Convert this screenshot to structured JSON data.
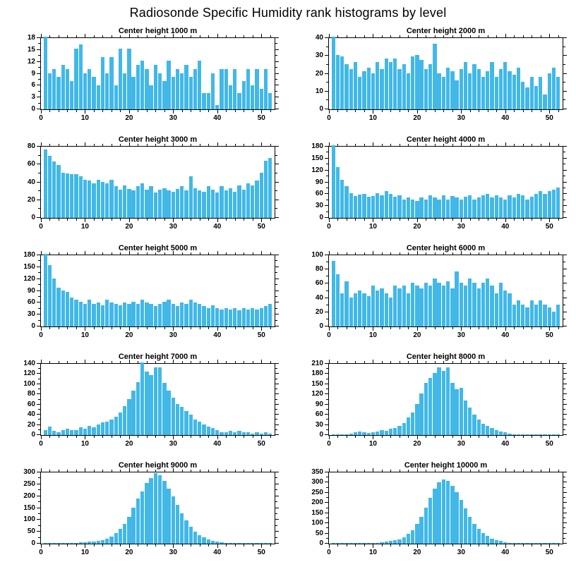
{
  "page_title": "Radiosonde Specific Humidity rank histograms by level",
  "bar_color": "#41b8e8",
  "chart_data": {
    "note": "see charts[] — ten rank histograms, shared x axis 0-50 with 52 bins"
  },
  "charts": [
    {
      "type": "bar",
      "title": "Center height 1000 m",
      "xlabel": "",
      "ylabel": "",
      "xlim": [
        0,
        53
      ],
      "ylim": [
        0,
        18
      ],
      "xticks": [
        0,
        10,
        20,
        30,
        40,
        50
      ],
      "yticks": [
        0,
        3,
        6,
        9,
        12,
        15,
        18
      ],
      "values": [
        18,
        9,
        10,
        8,
        11,
        10,
        7,
        15,
        16,
        9,
        10,
        8,
        6,
        13,
        9,
        13,
        6,
        15,
        9,
        15,
        8,
        11,
        12,
        10,
        6,
        11,
        9,
        7,
        12,
        8,
        10,
        9,
        11,
        8,
        10,
        12,
        4,
        4,
        9,
        1,
        10,
        10,
        6,
        10,
        4,
        7,
        10,
        6,
        10,
        5,
        10,
        4
      ]
    },
    {
      "type": "bar",
      "title": "Center height 2000 m",
      "xlabel": "",
      "ylabel": "",
      "xlim": [
        0,
        53
      ],
      "ylim": [
        0,
        40
      ],
      "xticks": [
        0,
        10,
        20,
        30,
        40,
        50
      ],
      "yticks": [
        0,
        10,
        20,
        30,
        40
      ],
      "values": [
        40,
        30,
        29,
        25,
        22,
        26,
        18,
        21,
        23,
        20,
        26,
        22,
        28,
        26,
        28,
        22,
        25,
        20,
        29,
        30,
        27,
        22,
        25,
        36,
        20,
        18,
        23,
        21,
        16,
        22,
        26,
        20,
        25,
        22,
        18,
        21,
        26,
        18,
        22,
        26,
        21,
        19,
        23,
        15,
        12,
        18,
        13,
        18,
        8,
        20,
        23,
        18
      ]
    },
    {
      "type": "bar",
      "title": "Center height 3000 m",
      "xlabel": "",
      "ylabel": "",
      "xlim": [
        0,
        53
      ],
      "ylim": [
        0,
        80
      ],
      "xticks": [
        0,
        10,
        20,
        30,
        40,
        50
      ],
      "yticks": [
        0,
        20,
        40,
        60,
        80
      ],
      "values": [
        75,
        68,
        62,
        58,
        50,
        49,
        48,
        48,
        46,
        42,
        41,
        38,
        42,
        40,
        38,
        42,
        35,
        31,
        36,
        32,
        30,
        35,
        38,
        31,
        35,
        28,
        31,
        33,
        30,
        29,
        32,
        35,
        30,
        46,
        33,
        30,
        29,
        35,
        31,
        28,
        35,
        30,
        33,
        29,
        36,
        31,
        38,
        36,
        41,
        50,
        63,
        66
      ]
    },
    {
      "type": "bar",
      "title": "Center height 4000 m",
      "xlabel": "",
      "ylabel": "",
      "xlim": [
        0,
        53
      ],
      "ylim": [
        0,
        180
      ],
      "xticks": [
        0,
        10,
        20,
        30,
        40,
        50
      ],
      "yticks": [
        0,
        30,
        60,
        90,
        120,
        150,
        180
      ],
      "values": [
        180,
        125,
        95,
        78,
        62,
        55,
        57,
        60,
        52,
        55,
        62,
        56,
        66,
        60,
        52,
        56,
        46,
        50,
        45,
        42,
        50,
        46,
        56,
        50,
        45,
        56,
        46,
        55,
        50,
        46,
        52,
        56,
        46,
        50,
        56,
        60,
        50,
        56,
        50,
        46,
        56,
        50,
        60,
        56,
        46,
        52,
        60,
        66,
        60,
        66,
        70,
        76
      ]
    },
    {
      "type": "bar",
      "title": "Center height 5000 m",
      "xlabel": "",
      "ylabel": "",
      "xlim": [
        0,
        53
      ],
      "ylim": [
        0,
        180
      ],
      "xticks": [
        0,
        10,
        20,
        30,
        40,
        50
      ],
      "yticks": [
        0,
        30,
        60,
        90,
        120,
        150,
        180
      ],
      "values": [
        180,
        152,
        118,
        96,
        90,
        86,
        72,
        66,
        62,
        56,
        66,
        56,
        60,
        52,
        66,
        60,
        56,
        52,
        60,
        56,
        62,
        56,
        66,
        60,
        56,
        50,
        56,
        62,
        66,
        56,
        50,
        60,
        56,
        66,
        60,
        56,
        50,
        46,
        52,
        46,
        42,
        46,
        42,
        46,
        40,
        46,
        42,
        46,
        42,
        46,
        50,
        56
      ]
    },
    {
      "type": "bar",
      "title": "Center height 6000 m",
      "xlabel": "",
      "ylabel": "",
      "xlim": [
        0,
        53
      ],
      "ylim": [
        0,
        100
      ],
      "xticks": [
        0,
        10,
        20,
        30,
        40,
        50
      ],
      "yticks": [
        0,
        20,
        40,
        60,
        80,
        100
      ],
      "values": [
        90,
        72,
        46,
        62,
        40,
        46,
        50,
        46,
        42,
        56,
        50,
        52,
        46,
        40,
        56,
        52,
        56,
        46,
        60,
        56,
        52,
        60,
        56,
        66,
        60,
        56,
        62,
        52,
        76,
        60,
        56,
        66,
        60,
        52,
        60,
        66,
        56,
        46,
        60,
        50,
        46,
        30,
        36,
        30,
        26,
        36,
        30,
        36,
        30,
        26,
        20,
        30
      ]
    },
    {
      "type": "bar",
      "title": "Center height 7000 m",
      "xlabel": "",
      "ylabel": "",
      "xlim": [
        0,
        53
      ],
      "ylim": [
        0,
        140
      ],
      "xticks": [
        0,
        10,
        20,
        30,
        40,
        50
      ],
      "yticks": [
        0,
        20,
        40,
        60,
        80,
        100,
        120,
        140
      ],
      "values": [
        10,
        16,
        8,
        6,
        10,
        12,
        10,
        10,
        15,
        12,
        18,
        15,
        20,
        24,
        26,
        30,
        36,
        44,
        56,
        70,
        86,
        102,
        140,
        122,
        116,
        130,
        131,
        100,
        86,
        72,
        60,
        54,
        46,
        40,
        30,
        26,
        20,
        16,
        14,
        10,
        6,
        5,
        8,
        5,
        8,
        5,
        5,
        3,
        5,
        3,
        5,
        3
      ]
    },
    {
      "type": "bar",
      "title": "Center height 8000 m",
      "xlabel": "",
      "ylabel": "",
      "xlim": [
        0,
        53
      ],
      "ylim": [
        0,
        210
      ],
      "xticks": [
        0,
        10,
        20,
        30,
        40,
        50
      ],
      "yticks": [
        0,
        30,
        60,
        90,
        120,
        150,
        180,
        210
      ],
      "values": [
        1,
        2,
        3,
        3,
        5,
        8,
        10,
        8,
        6,
        8,
        10,
        14,
        12,
        18,
        20,
        26,
        35,
        50,
        66,
        90,
        120,
        150,
        165,
        180,
        196,
        186,
        196,
        150,
        132,
        136,
        100,
        80,
        60,
        45,
        32,
        26,
        20,
        14,
        10,
        8,
        5,
        3,
        3,
        2,
        2,
        2,
        2,
        2,
        2,
        2,
        2,
        2
      ]
    },
    {
      "type": "bar",
      "title": "Center height 9000 m",
      "xlabel": "",
      "ylabel": "",
      "xlim": [
        0,
        53
      ],
      "ylim": [
        0,
        300
      ],
      "xticks": [
        0,
        10,
        20,
        30,
        40,
        50
      ],
      "yticks": [
        0,
        50,
        100,
        150,
        200,
        250,
        300
      ],
      "values": [
        2,
        2,
        2,
        2,
        2,
        3,
        3,
        3,
        5,
        5,
        8,
        10,
        12,
        16,
        20,
        30,
        45,
        62,
        82,
        110,
        150,
        185,
        215,
        250,
        272,
        290,
        284,
        258,
        228,
        195,
        160,
        125,
        95,
        70,
        50,
        36,
        25,
        18,
        12,
        8,
        5,
        3,
        2,
        2,
        2,
        2,
        2,
        2,
        2,
        2,
        2,
        2
      ]
    },
    {
      "type": "bar",
      "title": "Center height 10000 m",
      "xlabel": "",
      "ylabel": "",
      "xlim": [
        0,
        53
      ],
      "ylim": [
        0,
        350
      ],
      "xticks": [
        0,
        10,
        20,
        30,
        40,
        50
      ],
      "yticks": [
        0,
        50,
        100,
        150,
        200,
        250,
        300,
        350
      ],
      "values": [
        2,
        2,
        2,
        2,
        2,
        2,
        2,
        3,
        3,
        5,
        5,
        8,
        10,
        12,
        16,
        22,
        30,
        46,
        66,
        95,
        130,
        175,
        220,
        265,
        296,
        310,
        304,
        280,
        248,
        210,
        170,
        130,
        96,
        70,
        50,
        36,
        25,
        18,
        12,
        8,
        5,
        3,
        2,
        2,
        2,
        2,
        2,
        2,
        2,
        2,
        2,
        2
      ]
    }
  ]
}
